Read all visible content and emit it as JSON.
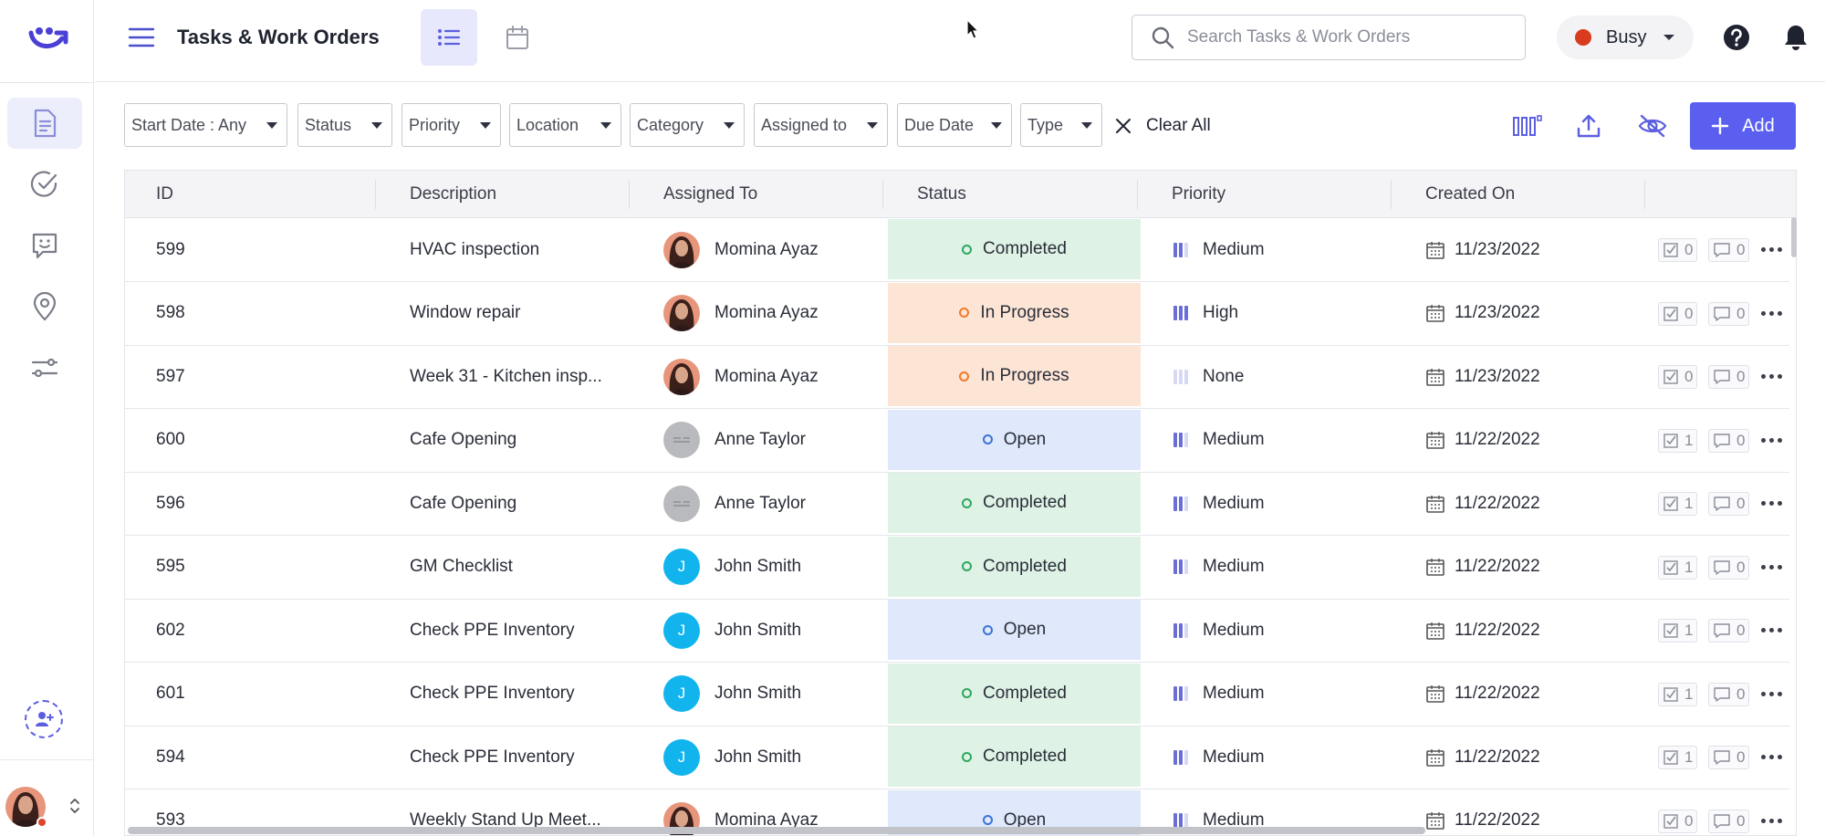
{
  "colors": {
    "accent": "#5b5ff0",
    "status_completed_bg": "#def2e5",
    "status_completed_ring": "#2fa85f",
    "status_progress_bg": "#fde5d6",
    "status_progress_ring": "#f07a2a",
    "status_open_bg": "#dfe9fb",
    "status_open_ring": "#3b72d9",
    "busy_dot": "#d93b1c"
  },
  "header": {
    "title": "Tasks & Work Orders",
    "search_placeholder": "Search Tasks & Work Orders",
    "status_label": "Busy"
  },
  "sidebar": {
    "items": [
      {
        "icon": "document-icon",
        "active": true
      },
      {
        "icon": "check-circle-icon",
        "active": false
      },
      {
        "icon": "chat-smile-icon",
        "active": false
      },
      {
        "icon": "location-pin-icon",
        "active": false
      },
      {
        "icon": "sliders-icon",
        "active": false
      }
    ]
  },
  "filters": [
    {
      "label": "Start Date : Any"
    },
    {
      "label": "Status"
    },
    {
      "label": "Priority"
    },
    {
      "label": "Location"
    },
    {
      "label": "Category"
    },
    {
      "label": "Assigned to"
    },
    {
      "label": "Due Date"
    },
    {
      "label": "Type"
    }
  ],
  "toolbar": {
    "clear_all": "Clear All",
    "add_label": "Add"
  },
  "table": {
    "columns": [
      "ID",
      "Description",
      "Assigned To",
      "Status",
      "Priority",
      "Created On"
    ],
    "rows": [
      {
        "id": "599",
        "description": "HVAC inspection",
        "assignee": "Momina Ayaz",
        "avatar": "photo",
        "status": "Completed",
        "priority": "Medium",
        "created": "11/23/2022",
        "checks": "0",
        "comments": "0"
      },
      {
        "id": "598",
        "description": "Window repair",
        "assignee": "Momina Ayaz",
        "avatar": "photo",
        "status": "In Progress",
        "priority": "High",
        "created": "11/23/2022",
        "checks": "0",
        "comments": "0"
      },
      {
        "id": "597",
        "description": "Week 31 - Kitchen insp...",
        "assignee": "Momina Ayaz",
        "avatar": "photo",
        "status": "In Progress",
        "priority": "None",
        "created": "11/23/2022",
        "checks": "0",
        "comments": "0"
      },
      {
        "id": "600",
        "description": "Cafe Opening",
        "assignee": "Anne Taylor",
        "avatar": "gray",
        "status": "Open",
        "priority": "Medium",
        "created": "11/22/2022",
        "checks": "1",
        "comments": "0"
      },
      {
        "id": "596",
        "description": "Cafe Opening",
        "assignee": "Anne Taylor",
        "avatar": "gray",
        "status": "Completed",
        "priority": "Medium",
        "created": "11/22/2022",
        "checks": "1",
        "comments": "0"
      },
      {
        "id": "595",
        "description": "GM Checklist",
        "assignee": "John Smith",
        "avatar": "J",
        "status": "Completed",
        "priority": "Medium",
        "created": "11/22/2022",
        "checks": "1",
        "comments": "0"
      },
      {
        "id": "602",
        "description": "Check PPE Inventory",
        "assignee": "John Smith",
        "avatar": "J",
        "status": "Open",
        "priority": "Medium",
        "created": "11/22/2022",
        "checks": "1",
        "comments": "0"
      },
      {
        "id": "601",
        "description": "Check PPE Inventory",
        "assignee": "John Smith",
        "avatar": "J",
        "status": "Completed",
        "priority": "Medium",
        "created": "11/22/2022",
        "checks": "1",
        "comments": "0"
      },
      {
        "id": "594",
        "description": "Check PPE Inventory",
        "assignee": "John Smith",
        "avatar": "J",
        "status": "Completed",
        "priority": "Medium",
        "created": "11/22/2022",
        "checks": "1",
        "comments": "0"
      },
      {
        "id": "593",
        "description": "Weekly Stand Up Meet...",
        "assignee": "Momina Ayaz",
        "avatar": "photo",
        "status": "Open",
        "priority": "Medium",
        "created": "11/22/2022",
        "checks": "0",
        "comments": "0"
      }
    ]
  }
}
